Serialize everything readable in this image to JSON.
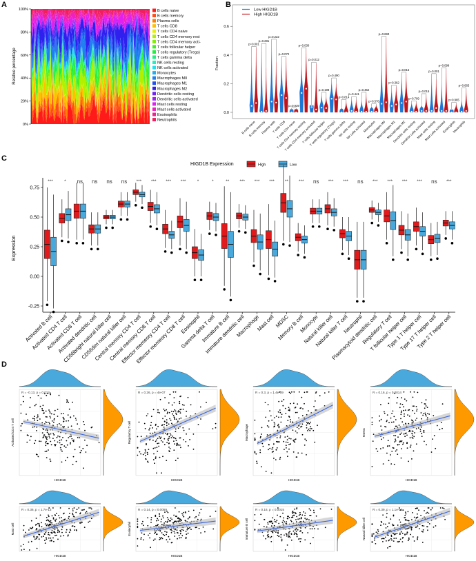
{
  "panels": {
    "a": "A",
    "b": "B",
    "c": "C",
    "d": "D"
  },
  "chart_data": [
    {
      "id": "A",
      "type": "area",
      "stacked": true,
      "ylabel": "Relative percentage",
      "yticks": [
        "0%",
        "20%",
        "40%",
        "60%",
        "80%",
        "100%"
      ],
      "ylim": [
        0,
        100
      ],
      "legend": [
        "B cells naive",
        "B cells memory",
        "Plasma cells",
        "T cells CD8",
        "T cells CD4 naive",
        "T cells CD4 memory rest",
        "T cells CD4 memory acti-",
        "T cells follicular helper",
        "T cells regulatory (Tregs)",
        "T cells gamma delta",
        "NK cells resting",
        "NK cells activated",
        "Monocytes",
        "Macrophages M0",
        "Macrophages M1",
        "Macrophages M2",
        "Dendritic cells resting",
        "Dendritic cells activated",
        "Mast cells resting",
        "Mast cells activated",
        "Eosinophils",
        "Neutrophils"
      ],
      "colors": [
        "#ff1a1a",
        "#ff4d1a",
        "#ff8000",
        "#ffc000",
        "#e6f000",
        "#b3f000",
        "#80f000",
        "#40f020",
        "#20f040",
        "#20f080",
        "#20f0c0",
        "#20e0f0",
        "#20b0f0",
        "#2080f0",
        "#2050f0",
        "#3020f0",
        "#7020f0",
        "#a020f0",
        "#e020f0",
        "#f020c0",
        "#f02090",
        "#f02060"
      ]
    },
    {
      "id": "B",
      "type": "violin",
      "ylabel": "Fraction",
      "ylim": [
        0,
        0.75
      ],
      "yticks": [
        "0.0",
        "0.2",
        "0.4",
        "0.6"
      ],
      "legend": [
        {
          "name": "Low HIGD1B",
          "color": "#1f77d4"
        },
        {
          "name": "High HIGD1B",
          "color": "#c0141c"
        }
      ],
      "categories": [
        "B cells naive",
        "B cells memory",
        "Plasma cells",
        "T cells CD8",
        "T cells CD4 naive",
        "T cells CD4 memory resting",
        "T cells CD4 memory activated",
        "T cells follicular helper",
        "T cells regulatory (Tregs)",
        "T cells gamma delta",
        "NK cells resting",
        "NK cells activated",
        "Monocytes",
        "Macrophages M0",
        "Macrophages M1",
        "Macrophages M2",
        "Dendritic cells resting",
        "Dendritic cells activated",
        "Mast cells resting",
        "Mast cells activated",
        "Eosinophils",
        "Neutrophils"
      ],
      "pvalues": [
        "p=0.001",
        "p=0.281",
        "p=0.222",
        "p=0.072",
        "p=0.939",
        "p=0.030",
        "p=0.012",
        "p=0.198",
        "p=0.490",
        "p=0.814",
        "p=0.441",
        "p=0.452",
        "p=0.576",
        "p=0.693",
        "p=0.362",
        "p=0.015",
        "p=0.709",
        "p=0.015",
        "p=0.001",
        "p=0.099",
        "p=0.965",
        "p=0.665"
      ],
      "low_median": [
        0.045,
        0.005,
        0.075,
        0.12,
        0,
        0.135,
        0.035,
        0.033,
        0.095,
        0,
        0.01,
        0.005,
        0.005,
        0.06,
        0.045,
        0.065,
        0.005,
        0.01,
        0.01,
        0.01,
        0,
        0.005
      ],
      "high_median": [
        0.065,
        0.01,
        0.068,
        0.1,
        0,
        0.165,
        0.02,
        0.03,
        0.09,
        0,
        0.005,
        0.005,
        0.005,
        0.07,
        0.055,
        0.075,
        0.005,
        0.01,
        0.03,
        0.01,
        0,
        0.01
      ],
      "low_max": [
        0.39,
        0.47,
        0.5,
        0.38,
        0.02,
        0.35,
        0.01,
        0.13,
        0.23,
        0.03,
        0.1,
        0.09,
        0.04,
        0.38,
        0.17,
        0.27,
        0.07,
        0.05,
        0.26,
        0.22,
        0.01,
        0.09
      ],
      "high_max": [
        0.45,
        0.31,
        0.35,
        0.38,
        0.02,
        0.44,
        0.34,
        0.11,
        0.2,
        0.08,
        0.09,
        0.13,
        0.05,
        0.52,
        0.18,
        0.27,
        0.07,
        0.12,
        0.23,
        0.3,
        0.06,
        0.16
      ]
    },
    {
      "id": "C",
      "type": "box",
      "legend_title": "HIGD1B Expression",
      "legend": [
        {
          "name": "High",
          "color": "#e31a1c"
        },
        {
          "name": "Low",
          "color": "#4aa9dc"
        }
      ],
      "ylabel": "Expression",
      "ylim": [
        -0.25,
        0.8
      ],
      "yticks": [
        "-0.25",
        "0.00",
        "0.25",
        "0.50",
        "0.75"
      ],
      "categories": [
        "Activated B cell",
        "Activated CD4 T cell",
        "Activated CD8 T cell",
        "Activated dendritic cell",
        "CD56bright natural killer cell",
        "CD56dim natural killer cell",
        "Central memory CD4 T cell",
        "Central memory CD8 T cell",
        "Effector memeory CD4 T cell",
        "Effector memeory CD8 T cell",
        "Eosinophil",
        "Gamma delta T cell",
        "Immature  B cell",
        "Immature dendritic cell",
        "Macrophage",
        "Mast cell",
        "MDSC",
        "Memory B cell",
        "Monocyte",
        "Natural killer cell",
        "Natural killer T cell",
        "Neutrophil",
        "Plasmacytoid dendritic cell",
        "Regulatory T cell",
        "T follicular helper cell",
        "Type 1 T helper cell",
        "Type 17 T helper cell",
        "Type 2 T helper cell"
      ],
      "significance": [
        "***",
        "*",
        "ns",
        "ns",
        "ns",
        "ns",
        "***",
        "***",
        "***",
        "***",
        "*",
        "*",
        "**",
        "***",
        "***",
        "***",
        "**",
        "***",
        "ns",
        "***",
        "***",
        "ns",
        "***",
        "***",
        "***",
        "***",
        "ns",
        "***"
      ],
      "high_median": [
        0.27,
        0.49,
        0.55,
        0.4,
        0.5,
        0.61,
        0.71,
        0.59,
        0.4,
        0.46,
        0.2,
        0.51,
        0.34,
        0.51,
        0.34,
        0.31,
        0.62,
        0.33,
        0.55,
        0.57,
        0.36,
        0.14,
        0.56,
        0.51,
        0.39,
        0.42,
        0.31,
        0.45
      ],
      "low_median": [
        0.21,
        0.52,
        0.55,
        0.4,
        0.5,
        0.61,
        0.69,
        0.57,
        0.35,
        0.43,
        0.18,
        0.5,
        0.27,
        0.5,
        0.29,
        0.23,
        0.57,
        0.31,
        0.55,
        0.54,
        0.34,
        0.14,
        0.54,
        0.47,
        0.35,
        0.38,
        0.32,
        0.43
      ],
      "high_iqr": [
        0.24,
        0.08,
        0.12,
        0.07,
        0.03,
        0.05,
        0.04,
        0.07,
        0.08,
        0.1,
        0.1,
        0.06,
        0.21,
        0.05,
        0.11,
        0.15,
        0.16,
        0.06,
        0.05,
        0.07,
        0.07,
        0.16,
        0.04,
        0.1,
        0.08,
        0.08,
        0.07,
        0.05
      ],
      "low_iqr": [
        0.24,
        0.1,
        0.12,
        0.07,
        0.03,
        0.05,
        0.04,
        0.07,
        0.06,
        0.1,
        0.09,
        0.06,
        0.22,
        0.05,
        0.12,
        0.12,
        0.14,
        0.06,
        0.05,
        0.06,
        0.08,
        0.16,
        0.04,
        0.15,
        0.09,
        0.08,
        0.07,
        0.06
      ]
    },
    {
      "id": "D",
      "type": "scatter",
      "xlabel": "HIGD1B",
      "plots": [
        {
          "ylabel": "Activated CD4 T cell",
          "stat": "R = -0.13, p = 0.013",
          "r": -0.13
        },
        {
          "ylabel": "Regulatory T cell",
          "stat": "R = 0.26, p = 4e-07",
          "r": 0.26
        },
        {
          "ylabel": "Macrophage",
          "stat": "R = 0.3, p = 1.4e-09",
          "r": 0.3
        },
        {
          "ylabel": "MDSC",
          "stat": "R = 0.16, p = 0.0014",
          "r": 0.16
        },
        {
          "ylabel": "Mast cell",
          "stat": "R = 0.36, p = 1.7e-13",
          "r": 0.36
        },
        {
          "ylabel": "Eosinophil",
          "stat": "R = 0.14, p = 0.0059",
          "r": 0.14
        },
        {
          "ylabel": "Immature B cell",
          "stat": "R = 0.16, p = 0.0015",
          "r": 0.16
        },
        {
          "ylabel": "Natural killer cell",
          "stat": "R = 0.39, p = 1.1e-15",
          "r": 0.39
        }
      ]
    }
  ]
}
